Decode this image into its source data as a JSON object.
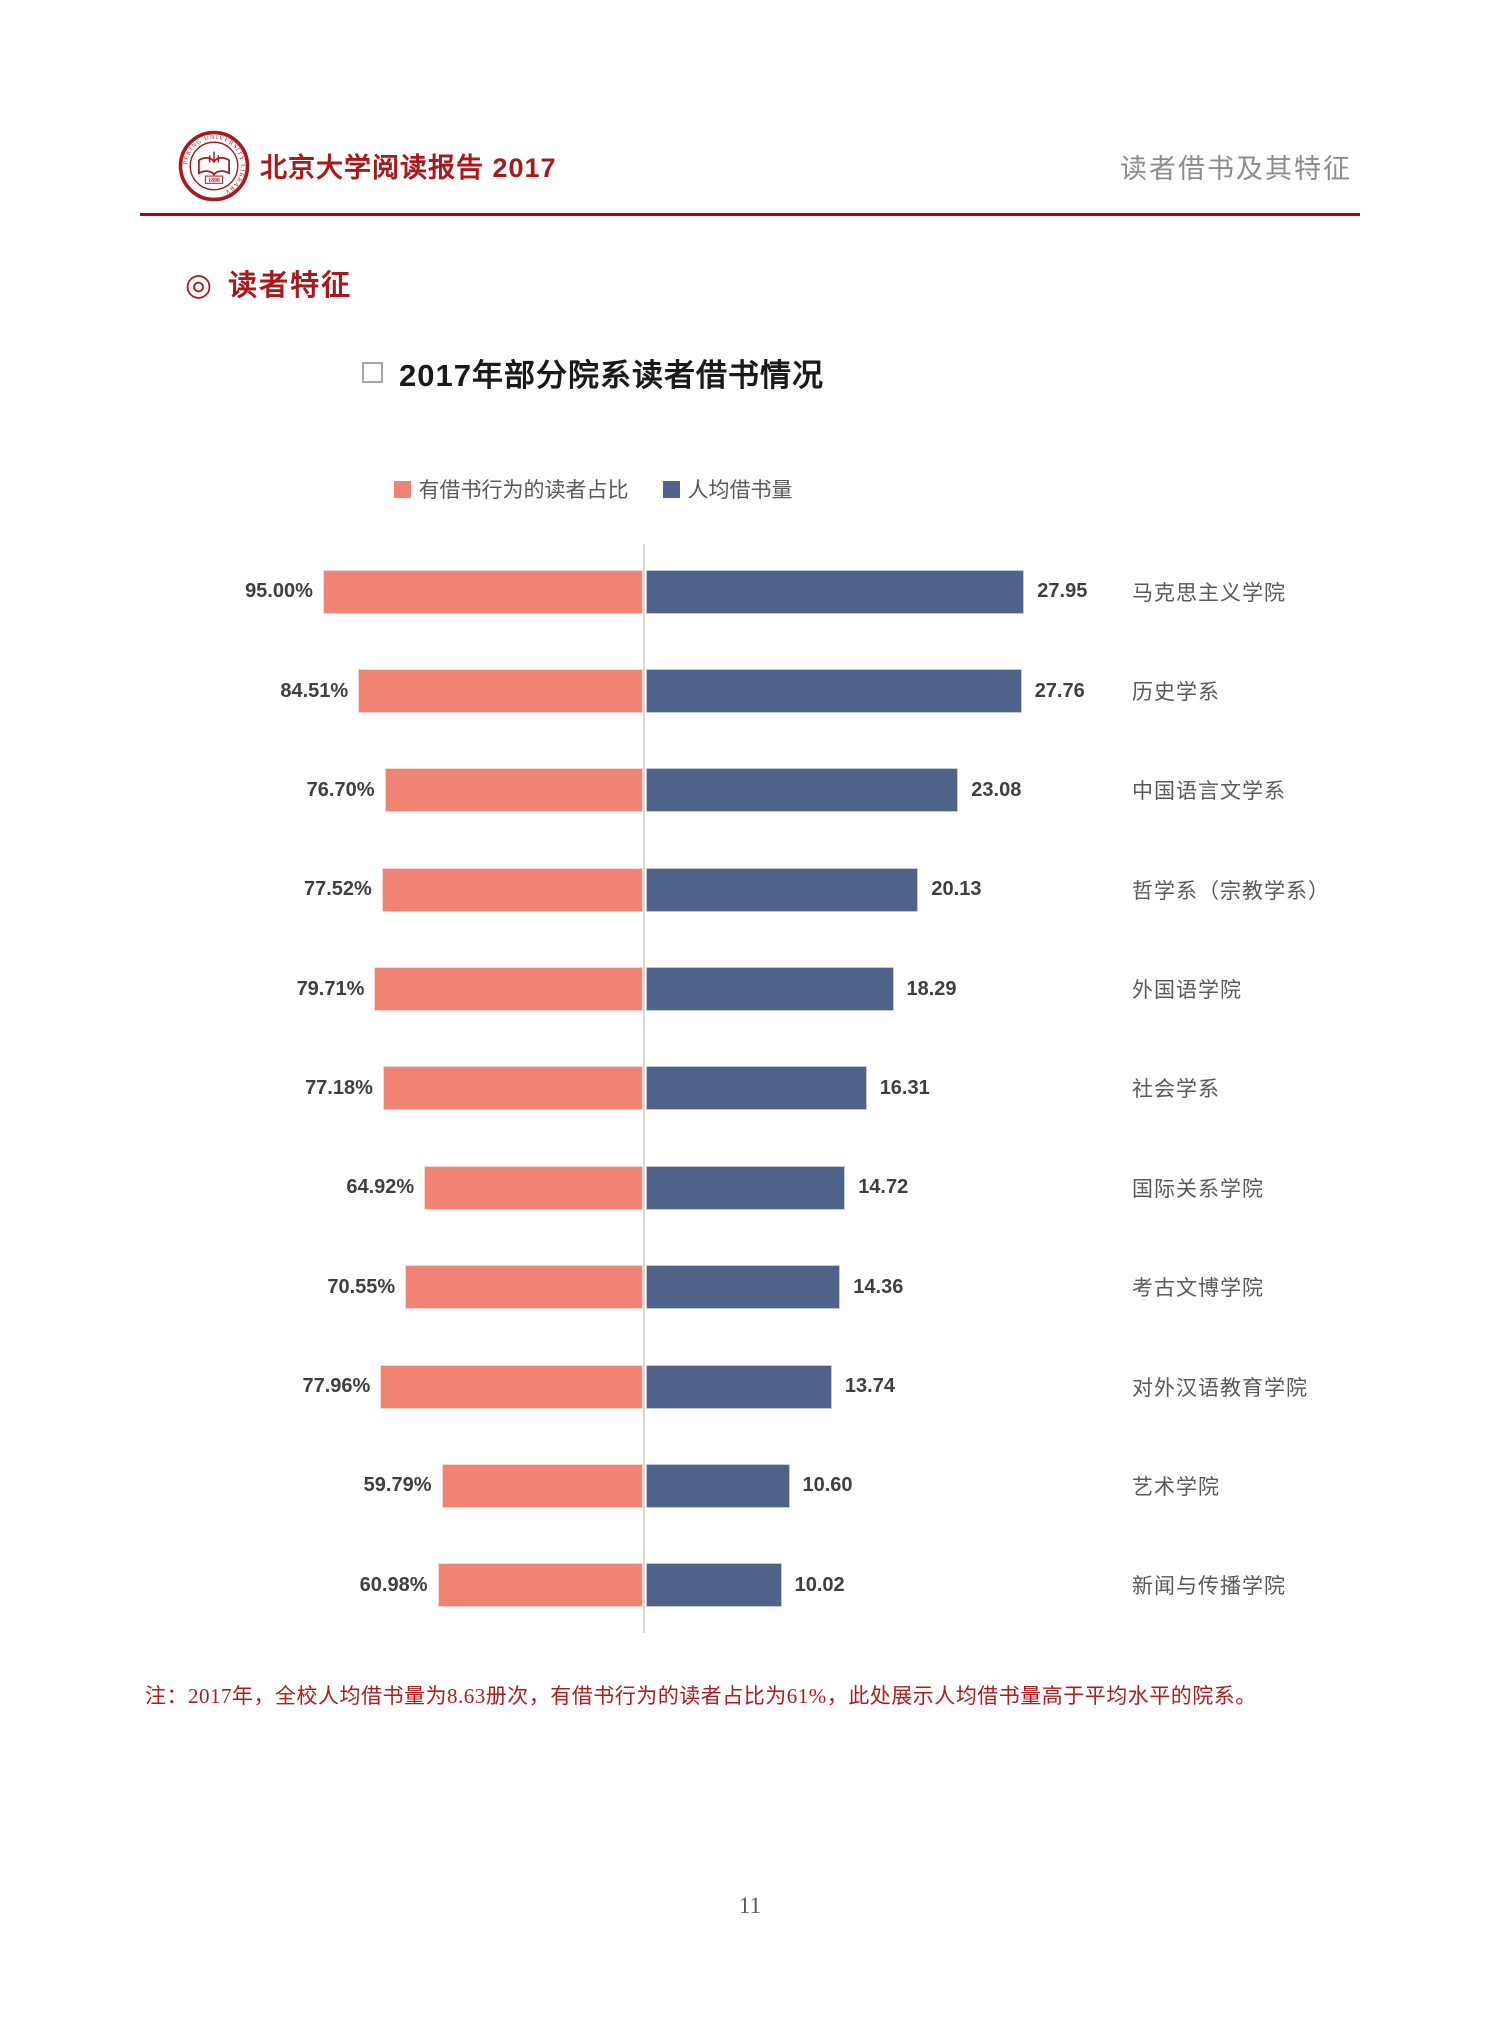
{
  "header": {
    "logo": {
      "ring_text": "PEKING UNIVERSITY LIBRARY",
      "year": "1898",
      "color": "#A8191E"
    },
    "title": "北京大学阅读报告 2017",
    "right_title": "读者借书及其特征",
    "rule_color": "#C00000"
  },
  "section": {
    "marker": "◎",
    "title": "读者特征"
  },
  "chart_data": {
    "type": "bar",
    "variant": "bidirectional-tornado",
    "title": "2017年部分院系读者借书情况",
    "title_marker": "□",
    "legend_position": "top-center",
    "grid": false,
    "center_axis": true,
    "categories": [
      "马克思主义学院",
      "历史学系",
      "中国语言文学系",
      "哲学系（宗教学系）",
      "外国语学院",
      "社会学系",
      "国际关系学院",
      "考古文博学院",
      "对外汉语教育学院",
      "艺术学院",
      "新闻与传播学院"
    ],
    "series": [
      {
        "name": "有借书行为的读者占比",
        "direction": "left",
        "unit": "%",
        "axis_max": 100,
        "color": "#F08373",
        "values": [
          95.0,
          84.51,
          76.7,
          77.52,
          79.71,
          77.18,
          64.92,
          70.55,
          77.96,
          59.79,
          60.98
        ],
        "labels": [
          "95.00%",
          "84.51%",
          "76.70%",
          "77.52%",
          "79.71%",
          "77.18%",
          "64.92%",
          "70.55%",
          "77.96%",
          "59.79%",
          "60.98%"
        ]
      },
      {
        "name": "人均借书量",
        "direction": "right",
        "unit": "册次",
        "axis_max": 30,
        "color": "#4F6287",
        "values": [
          27.95,
          27.76,
          23.08,
          20.13,
          18.29,
          16.31,
          14.72,
          14.36,
          13.74,
          10.6,
          10.02
        ],
        "labels": [
          "27.95",
          "27.76",
          "23.08",
          "20.13",
          "18.29",
          "16.31",
          "14.72",
          "14.36",
          "13.74",
          "10.60",
          "10.02"
        ]
      }
    ]
  },
  "note": "注：2017年，全校人均借书量为8.63册次，有借书行为的读者占比为61%，此处展示人均借书量高于平均水平的院系。",
  "page": {
    "number": "11"
  }
}
